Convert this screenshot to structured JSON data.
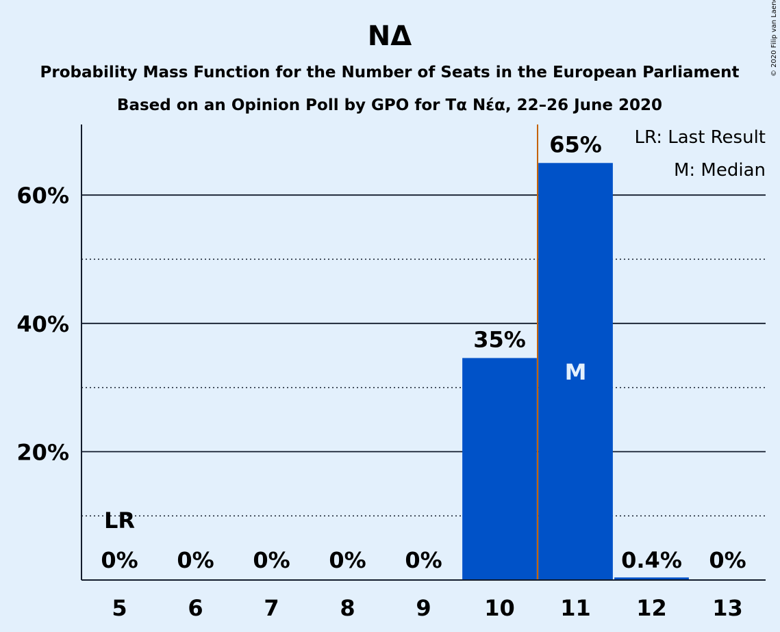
{
  "chart_data": {
    "type": "bar",
    "title": "ΝΔ",
    "subtitle1": "Probability Mass Function for the Number of Seats in the European Parliament",
    "subtitle2": "Based on an Opinion Poll by GPO for Τα Νέα, 22–26 June 2020",
    "categories": [
      "5",
      "6",
      "7",
      "8",
      "9",
      "10",
      "11",
      "12",
      "13"
    ],
    "values": [
      0,
      0,
      0,
      0,
      0,
      34.6,
      65.0,
      0.4,
      0
    ],
    "data_labels": [
      "0%",
      "0%",
      "0%",
      "0%",
      "0%",
      "35%",
      "65%",
      "0.4%",
      "0%"
    ],
    "ylim": [
      0,
      71
    ],
    "yticks": [
      20,
      40,
      60
    ],
    "ytick_labels": [
      "20%",
      "40%",
      "60%"
    ],
    "minor_gridlines": [
      10,
      30,
      50
    ],
    "last_result": {
      "category": "5",
      "label": "LR"
    },
    "median": {
      "category": "11",
      "label": "M",
      "line_between": [
        "10",
        "11"
      ]
    },
    "legend": {
      "position": "top-right",
      "entries": [
        "LR: Last Result",
        "M: Median"
      ]
    },
    "bar_color": "#0052c8",
    "median_line_color": "#c46200",
    "background_color": "#e3f0fc",
    "copyright": "© 2020 Filip van Laenen"
  }
}
